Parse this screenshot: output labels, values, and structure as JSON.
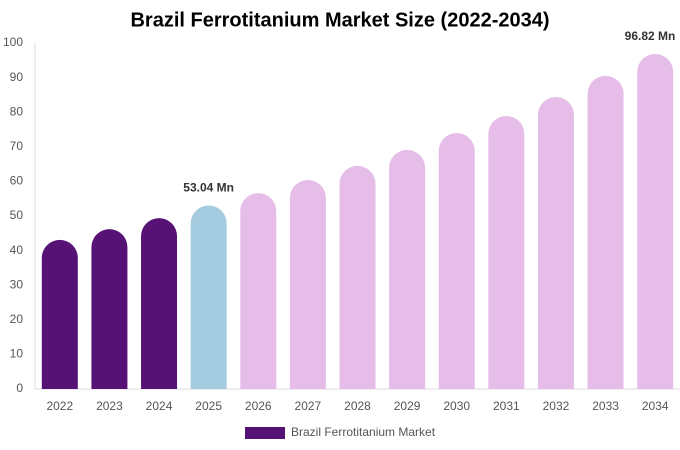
{
  "chart_data": {
    "type": "bar",
    "title": "Brazil Ferrotitanium Market Size (2022-2034)",
    "categories": [
      "2022",
      "2023",
      "2024",
      "2025",
      "2026",
      "2027",
      "2028",
      "2029",
      "2030",
      "2031",
      "2032",
      "2033",
      "2034"
    ],
    "series": [
      {
        "name": "Brazil Ferrotitanium Market",
        "color": "#561375",
        "colors": [
          "#561375",
          "#561375",
          "#561375",
          "#a4cbdf",
          "#e6bde8",
          "#e6bde8",
          "#e6bde8",
          "#e6bde8",
          "#e6bde8",
          "#e6bde8",
          "#e6bde8",
          "#e6bde8",
          "#e6bde8"
        ],
        "values": [
          43.1,
          46.2,
          49.4,
          53.04,
          56.6,
          60.4,
          64.5,
          69.1,
          74.0,
          78.9,
          84.4,
          90.5,
          96.82
        ],
        "value_labels": [
          null,
          null,
          null,
          "53.04 Mn",
          null,
          null,
          null,
          null,
          null,
          null,
          null,
          null,
          "96.82 Mn"
        ]
      }
    ],
    "ylim": [
      0,
      100
    ],
    "yticks": [
      0,
      10,
      20,
      30,
      40,
      50,
      60,
      70,
      80,
      90,
      100
    ],
    "grid": false
  }
}
